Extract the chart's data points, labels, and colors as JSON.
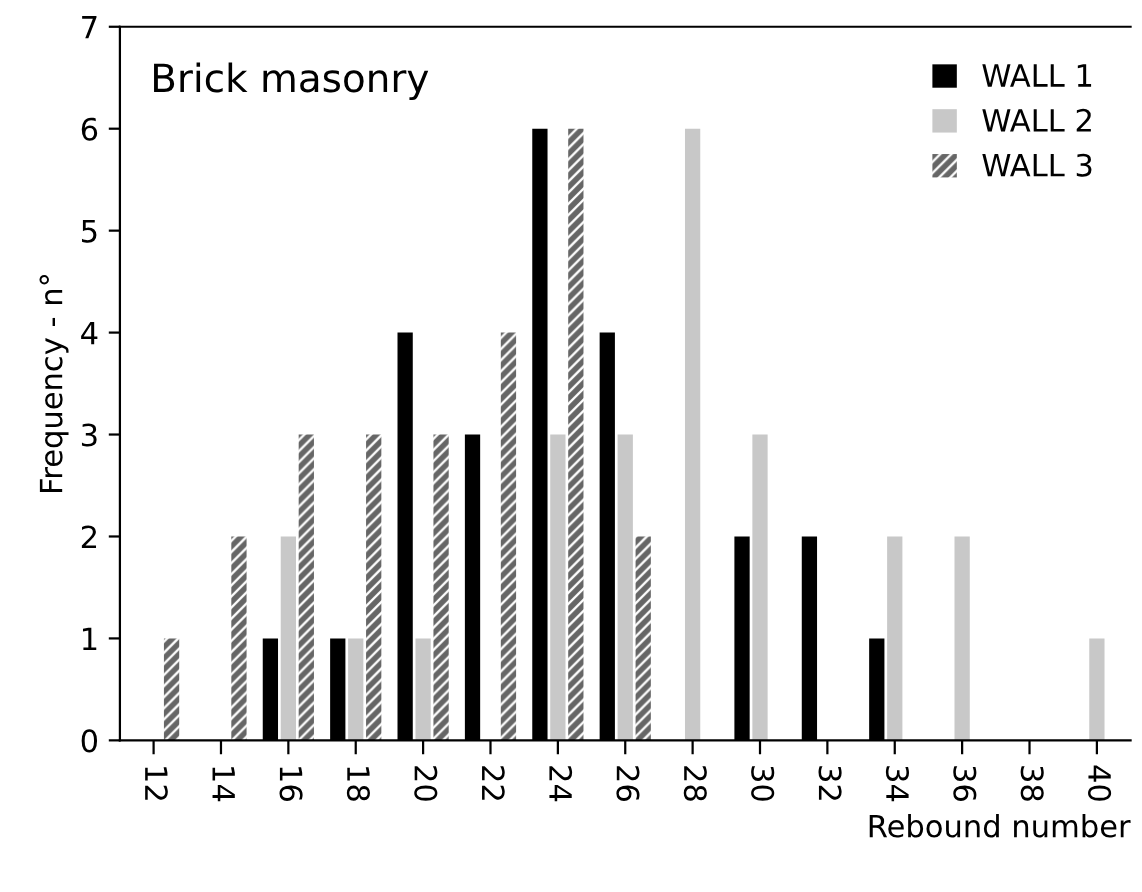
{
  "chart_data": {
    "type": "bar",
    "title": "Brick masonry",
    "xlabel": "Rebound number",
    "ylabel": "Frequency - n°",
    "categories": [
      "12",
      "14",
      "16",
      "18",
      "20",
      "22",
      "24",
      "26",
      "28",
      "30",
      "32",
      "34",
      "36",
      "38",
      "40"
    ],
    "series": [
      {
        "name": "WALL 1",
        "color": "#000000",
        "values": [
          0,
          0,
          1,
          1,
          4,
          3,
          6,
          4,
          0,
          2,
          2,
          1,
          0,
          0,
          0
        ]
      },
      {
        "name": "WALL 2",
        "color": "#c8c8c8",
        "values": [
          0,
          0,
          2,
          1,
          1,
          0,
          3,
          3,
          6,
          3,
          0,
          2,
          2,
          0,
          1
        ]
      },
      {
        "name": "WALL 3",
        "color": "#666666",
        "values": [
          1,
          2,
          3,
          3,
          3,
          4,
          6,
          2,
          0,
          0,
          0,
          0,
          0,
          0,
          0
        ]
      }
    ],
    "ylim": [
      0,
      7
    ],
    "yticks": [
      0,
      1,
      2,
      3,
      4,
      5,
      6,
      7
    ],
    "grid": false,
    "legend": "top right"
  }
}
